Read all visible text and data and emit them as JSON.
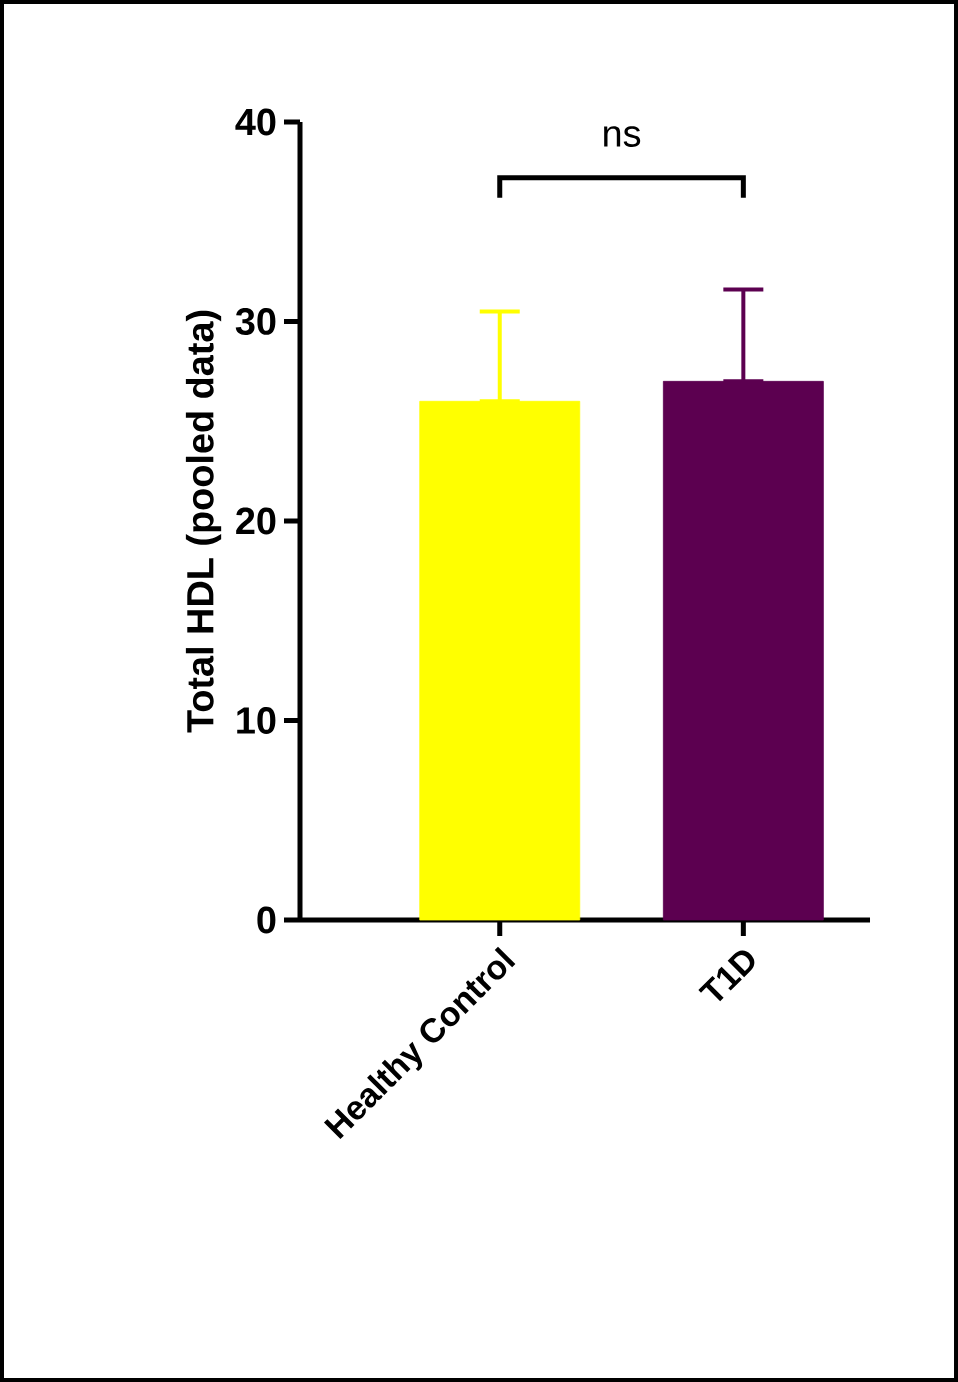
{
  "chart_data": {
    "type": "bar",
    "ylabel": "Total HDL (pooled data)",
    "categories": [
      "Healthy Control",
      "T1D"
    ],
    "values": [
      26,
      27
    ],
    "colors": [
      "#ffff00",
      "#5c0050"
    ],
    "errors": [
      [
        26,
        30.5
      ],
      [
        27,
        31.6
      ]
    ],
    "ylim": [
      0,
      40
    ],
    "yticks": [
      0,
      10,
      20,
      30,
      40
    ],
    "annotations": [
      {
        "text": "ns"
      }
    ]
  }
}
